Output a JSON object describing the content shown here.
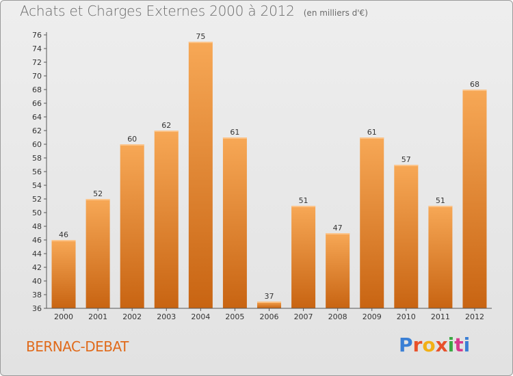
{
  "header": {
    "title": "Achats et Charges Externes 2000 à 2012",
    "unit": "(en milliers d'€)"
  },
  "footer": {
    "place": "BERNAC-DEBAT",
    "logo": "Proxiti"
  },
  "colors": {
    "bar_light": "#f7a856",
    "bar_dark": "#c86412",
    "place": "#e06a1a",
    "logo": [
      "#3a7fd5",
      "#e8502a",
      "#f2b015",
      "#e8502a",
      "#3aa843",
      "#d63a8c",
      "#3a7fd5"
    ]
  },
  "chart_data": {
    "type": "bar",
    "categories": [
      "2000",
      "2001",
      "2002",
      "2003",
      "2004",
      "2005",
      "2006",
      "2007",
      "2008",
      "2009",
      "2010",
      "2011",
      "2012"
    ],
    "values": [
      46,
      52,
      60,
      62,
      75,
      61,
      37,
      51,
      47,
      61,
      57,
      51,
      68
    ],
    "data_labels": [
      "46",
      "52",
      "60",
      "62",
      "75",
      "61",
      "37",
      "51",
      "47",
      "61",
      "57",
      "51",
      "68"
    ],
    "ylim": [
      36,
      76
    ],
    "yticks": [
      "36",
      "38",
      "40",
      "42",
      "44",
      "46",
      "48",
      "50",
      "52",
      "54",
      "56",
      "58",
      "60",
      "62",
      "64",
      "66",
      "68",
      "70",
      "72",
      "74",
      "76"
    ],
    "grid": false,
    "xlabel": "",
    "ylabel": ""
  }
}
